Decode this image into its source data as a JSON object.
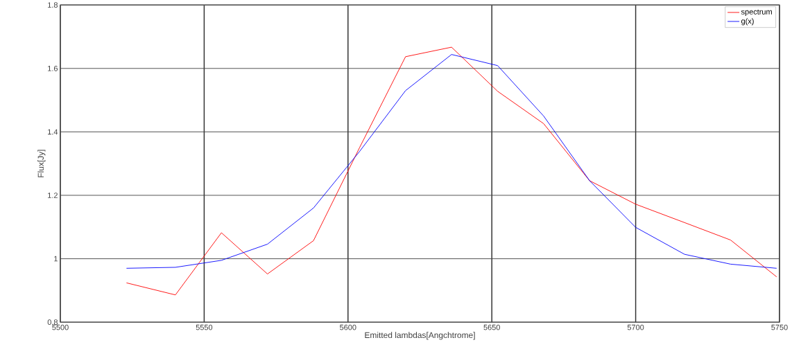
{
  "chart_data": {
    "type": "line",
    "xlabel": "Emitted lambdas[Angchtrome]",
    "ylabel": "Flux[Jy]",
    "x": [
      5523,
      5540,
      5556,
      5572,
      5588,
      5604,
      5620,
      5636,
      5652,
      5668,
      5684,
      5700,
      5717,
      5733,
      5749
    ],
    "series": [
      {
        "name": "spectrum",
        "color": "#ff0000",
        "values": [
          0.924,
          0.886,
          1.082,
          0.952,
          1.057,
          1.35,
          1.637,
          1.667,
          1.528,
          1.426,
          1.246,
          1.172,
          1.114,
          1.059,
          0.943
        ]
      },
      {
        "name": "g(x)",
        "color": "#0000ff",
        "values": [
          0.97,
          0.973,
          0.995,
          1.046,
          1.16,
          1.338,
          1.53,
          1.644,
          1.609,
          1.45,
          1.246,
          1.099,
          1.014,
          0.983,
          0.97
        ]
      }
    ],
    "xlim": [
      5500,
      5750
    ],
    "xticks": [
      5500,
      5550,
      5600,
      5650,
      5700,
      5750
    ],
    "ylim": [
      0.8,
      1.8
    ],
    "yticks": [
      0.8,
      1,
      1.2,
      1.4,
      1.6,
      1.8
    ],
    "grid": true,
    "legend": "top right",
    "marker": "none",
    "line_style": "solid"
  }
}
